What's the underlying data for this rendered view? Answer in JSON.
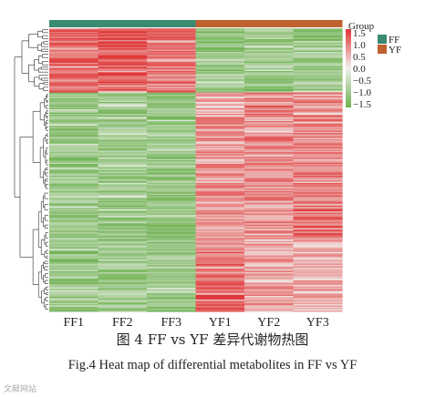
{
  "chart_data": {
    "type": "heatmap",
    "title": "",
    "columns": [
      "FF1",
      "FF2",
      "FF3",
      "YF1",
      "YF2",
      "YF3"
    ],
    "column_groups": [
      "FF",
      "FF",
      "FF",
      "YF",
      "YF",
      "YF"
    ],
    "legend_title": "Group",
    "groups": [
      {
        "name": "FF",
        "color": "#3a8a72"
      },
      {
        "name": "YF",
        "color": "#c0622f"
      }
    ],
    "color_scale": {
      "ticks": [
        "1.5",
        "1.0",
        "0.5",
        "0.0",
        "−0.5",
        "−1.0",
        "−1.5"
      ],
      "min": -1.5,
      "max": 1.5,
      "low_color": "#6db150",
      "mid_color": "#f1f1ef",
      "high_color": "#e03535"
    },
    "row_blocks": [
      {
        "rows": 54,
        "values": [
          1.0,
          1.2,
          0.9,
          -1.0,
          -1.0,
          -1.0
        ]
      },
      {
        "rows": 18,
        "values": [
          -1.0,
          -0.9,
          -1.0,
          0.5,
          1.0,
          0.8
        ]
      },
      {
        "rows": 70,
        "values": [
          -1.0,
          -0.9,
          -1.0,
          0.7,
          0.8,
          0.9
        ]
      },
      {
        "rows": 36,
        "values": [
          -1.0,
          -1.0,
          -1.0,
          0.6,
          0.7,
          1.0
        ]
      },
      {
        "rows": 30,
        "values": [
          -1.0,
          -0.9,
          -1.0,
          0.9,
          0.6,
          0.5
        ]
      },
      {
        "rows": 30,
        "values": [
          -1.0,
          -1.0,
          -1.0,
          1.2,
          0.6,
          0.5
        ]
      }
    ]
  },
  "caption": {
    "cn": "图 4    FF vs YF 差异代谢物热图",
    "en": "Fig.4    Heat map of differential metabolites in FF vs YF"
  },
  "watermark": "文献网站"
}
